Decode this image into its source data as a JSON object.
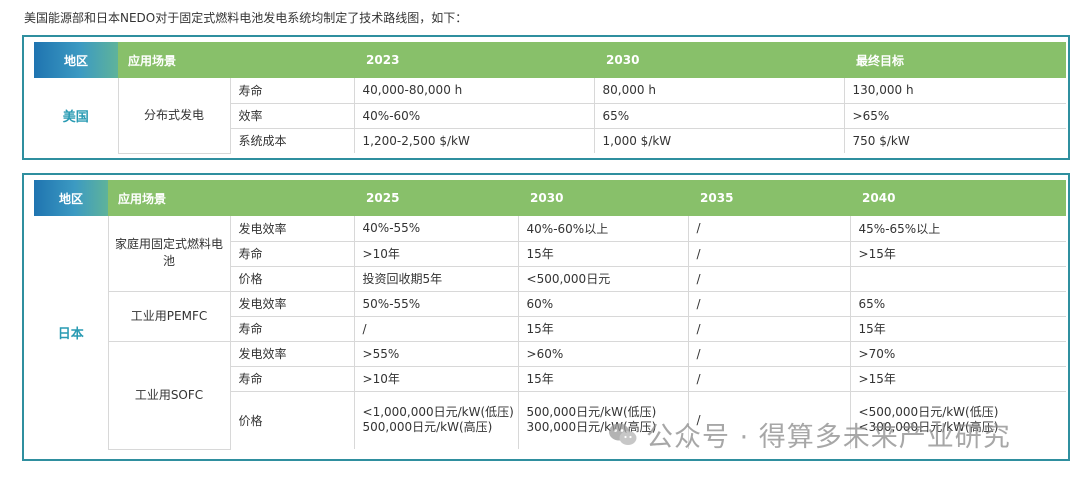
{
  "intro": "美国能源部和日本NEDO对于固定式燃料电池发电系统均制定了技术路线图，如下：",
  "us": {
    "headers": [
      "地区",
      "应用场景",
      "2023",
      "2030",
      "最终目标"
    ],
    "region": "美国",
    "scene": "分布式发电",
    "rows": [
      {
        "metric": "寿命",
        "values": [
          "40,000-80,000 h",
          "80,000 h",
          "130,000 h"
        ]
      },
      {
        "metric": "效率",
        "values": [
          "40%-60%",
          "65%",
          ">65%"
        ]
      },
      {
        "metric": "系统成本",
        "values": [
          "1,200-2,500 $/kW",
          "1,000 $/kW",
          "750 $/kW"
        ]
      }
    ]
  },
  "jp": {
    "headers": [
      "地区",
      "应用场景",
      "2025",
      "2030",
      "2035",
      "2040"
    ],
    "region": "日本",
    "groups": [
      {
        "scene": "家庭用固定式燃料电池",
        "rows": [
          {
            "metric": "发电效率",
            "values": [
              "40%-55%",
              "40%-60%以上",
              "/",
              "45%-65%以上"
            ]
          },
          {
            "metric": "寿命",
            "values": [
              ">10年",
              "15年",
              "/",
              ">15年"
            ]
          },
          {
            "metric": "价格",
            "values": [
              "投资回收期5年",
              "<500,000日元",
              "/",
              ""
            ]
          }
        ]
      },
      {
        "scene": "工业用PEMFC",
        "rows": [
          {
            "metric": "发电效率",
            "values": [
              "50%-55%",
              "60%",
              "/",
              "65%"
            ]
          },
          {
            "metric": "寿命",
            "values": [
              "/",
              "15年",
              "/",
              "15年"
            ]
          }
        ]
      },
      {
        "scene": "工业用SOFC",
        "rows": [
          {
            "metric": "发电效率",
            "values": [
              ">55%",
              ">60%",
              "/",
              ">70%"
            ]
          },
          {
            "metric": "寿命",
            "values": [
              ">10年",
              "15年",
              "/",
              ">15年"
            ]
          },
          {
            "metric": "价格",
            "values": [
              [
                "<1,000,000日元/kW(低压)",
                "500,000日元/kW(高压)"
              ],
              [
                "500,000日元/kW(低压)",
                "300,000日元/kW(高压)"
              ],
              [
                "/"
              ],
              [
                "<500,000日元/kW(低压)",
                "<300,000日元/kW(高压)"
              ]
            ]
          }
        ]
      }
    ]
  },
  "watermark": "公众号 · 得算多未来产业研究",
  "colors": {
    "panel_border": "#2f8f9f",
    "header_green": "#88c06a",
    "header_blue": "#1f74b0",
    "region_text": "#2a9bb3"
  }
}
